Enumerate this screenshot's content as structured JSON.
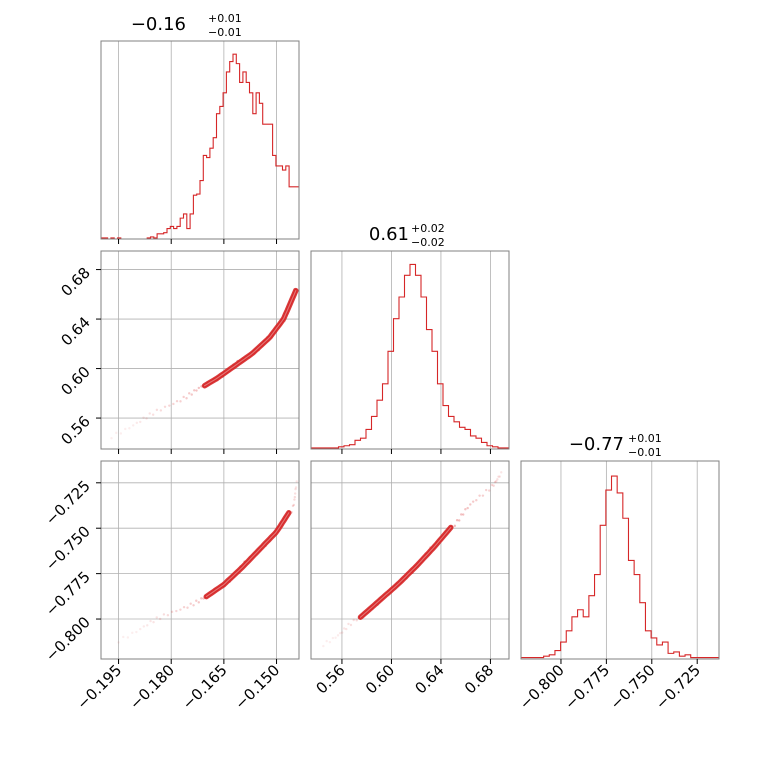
{
  "colors": {
    "line": "#d62728",
    "grid": "#b0b0b0",
    "frame": "#808080",
    "text": "#000000"
  },
  "chart_data": {
    "type": "corner",
    "params": [
      {
        "title_value": "−0.16",
        "title_plus": "+0.01",
        "title_minus": "−0.01",
        "range": [
          -0.2,
          -0.1436
        ],
        "ticks": [
          -0.195,
          -0.18,
          -0.165,
          -0.15
        ],
        "tick_labels": [
          "−0.195",
          "−0.180",
          "−0.165",
          "−0.150"
        ]
      },
      {
        "title_value": "0.61",
        "title_plus": "+0.02",
        "title_minus": "−0.02",
        "range": [
          0.535,
          0.695
        ],
        "ticks": [
          0.56,
          0.6,
          0.64,
          0.68
        ],
        "tick_labels": [
          "0.56",
          "0.60",
          "0.64",
          "0.68"
        ]
      },
      {
        "title_value": "−0.77",
        "title_plus": "+0.01",
        "title_minus": "−0.01",
        "range": [
          -0.822,
          -0.713
        ],
        "ticks": [
          -0.8,
          -0.775,
          -0.75,
          -0.725
        ],
        "tick_labels": [
          "−0.800",
          "−0.775",
          "−0.750",
          "−0.725"
        ]
      }
    ],
    "histograms": [
      {
        "param": 0,
        "bin_range": [
          -0.2,
          -0.1436
        ],
        "counts": [
          1,
          1,
          0,
          1,
          0,
          1,
          0,
          0,
          0,
          0,
          0,
          0,
          0,
          0,
          1,
          2,
          1,
          5,
          5,
          6,
          10,
          12,
          10,
          12,
          20,
          24,
          10,
          24,
          42,
          43,
          56,
          80,
          78,
          87,
          97,
          120,
          127,
          140,
          160,
          170,
          177,
          168,
          150,
          160,
          150,
          140,
          120,
          140,
          130,
          110,
          110,
          110,
          80,
          70,
          70,
          66,
          70,
          50,
          50,
          50
        ],
        "ymax": 182
      },
      {
        "param": 1,
        "bin_range": [
          0.535,
          0.695
        ],
        "counts": [
          1,
          1,
          1,
          1,
          1,
          2,
          3,
          4,
          8,
          10,
          18,
          30,
          45,
          60,
          90,
          120,
          140,
          160,
          170,
          160,
          140,
          110,
          90,
          60,
          40,
          30,
          25,
          20,
          18,
          12,
          10,
          6,
          3,
          2,
          1,
          1
        ],
        "ymax": 175
      },
      {
        "param": 2,
        "bin_range": [
          -0.822,
          -0.713
        ],
        "counts": [
          1,
          1,
          1,
          1,
          2,
          3,
          6,
          12,
          20,
          30,
          35,
          30,
          45,
          60,
          95,
          120,
          130,
          118,
          100,
          70,
          60,
          40,
          20,
          15,
          10,
          12,
          4,
          5,
          2,
          3,
          1,
          1,
          1,
          1,
          1
        ],
        "ymax": 135
      }
    ],
    "pairs": [
      {
        "x_param": 0,
        "y_param": 1,
        "ridge_x": [
          -0.197,
          -0.188,
          -0.18,
          -0.173,
          -0.167,
          -0.162,
          -0.157,
          -0.152,
          -0.148,
          -0.1445
        ],
        "ridge_y": [
          0.545,
          0.559,
          0.571,
          0.582,
          0.592,
          0.602,
          0.612,
          0.625,
          0.64,
          0.663
        ],
        "contour_x_extent": [
          -0.1705,
          -0.1445
        ]
      },
      {
        "x_param": 0,
        "y_param": 2,
        "ridge_x": [
          -0.195,
          -0.186,
          -0.178,
          -0.171,
          -0.165,
          -0.16,
          -0.155,
          -0.15,
          -0.146,
          -0.1438
        ],
        "ridge_y": [
          -0.812,
          -0.802,
          -0.795,
          -0.789,
          -0.781,
          -0.772,
          -0.762,
          -0.752,
          -0.74,
          -0.725
        ],
        "contour_x_extent": [
          -0.17,
          -0.1465
        ]
      },
      {
        "x_param": 1,
        "y_param": 2,
        "ridge_x": [
          0.545,
          0.56,
          0.575,
          0.59,
          0.605,
          0.62,
          0.635,
          0.65,
          0.665,
          0.68,
          0.69
        ],
        "ridge_y": [
          -0.814,
          -0.807,
          -0.799,
          -0.79,
          -0.781,
          -0.771,
          -0.76,
          -0.748,
          -0.737,
          -0.727,
          -0.72
        ],
        "contour_x_extent": [
          0.575,
          0.648
        ]
      }
    ]
  }
}
